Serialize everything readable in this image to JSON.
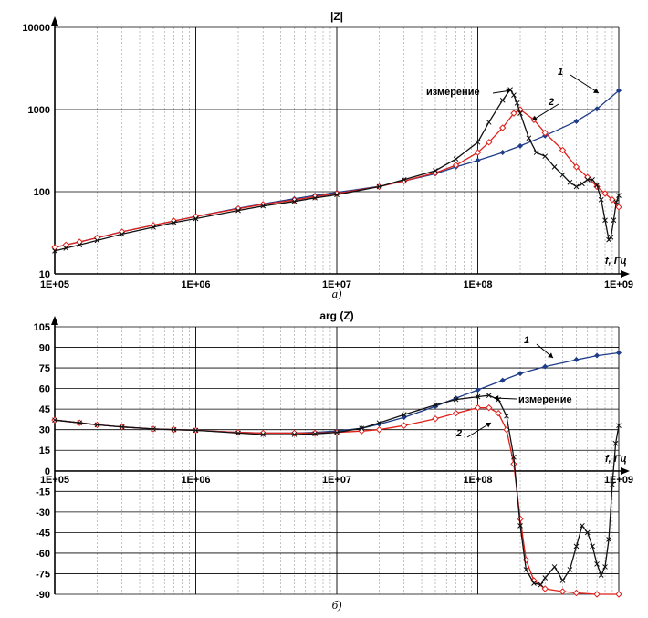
{
  "chart_data": [
    {
      "type": "line",
      "title": "|Z|",
      "subtitle": "а)",
      "scale_x": "log",
      "scale_y": "log",
      "xlim": [
        100000,
        1000000000
      ],
      "ylim": [
        10,
        10000
      ],
      "x_ticks": [
        "1E+05",
        "1E+06",
        "1E+07",
        "1E+08",
        "1E+09"
      ],
      "y_ticks": [
        "10",
        "100",
        "1000",
        "10000"
      ],
      "x_unit_label": "f, Гц",
      "grid": true,
      "annotations": [
        "1",
        "2",
        "измерение"
      ],
      "series": [
        {
          "name": "1",
          "color": "#1f3c88",
          "marker": "diamond",
          "x": [
            100000,
            120000,
            150000,
            200000,
            300000,
            500000,
            700000,
            1000000,
            2000000,
            3000000,
            5000000,
            7000000,
            10000000,
            20000000,
            30000000,
            50000000,
            70000000,
            100000000,
            150000000,
            200000000,
            300000000,
            500000000,
            700000000,
            1000000000
          ],
          "y": [
            21,
            22.5,
            24.5,
            27.5,
            32.5,
            39,
            44,
            50,
            63,
            71,
            82,
            90,
            98,
            116,
            135,
            165,
            200,
            240,
            300,
            360,
            480,
            720,
            1020,
            1700
          ]
        },
        {
          "name": "2",
          "color": "#e0201b",
          "marker": "diamond-open",
          "x": [
            100000,
            120000,
            150000,
            200000,
            300000,
            500000,
            700000,
            1000000,
            2000000,
            3000000,
            5000000,
            7000000,
            10000000,
            20000000,
            30000000,
            50000000,
            70000000,
            100000000,
            120000000,
            150000000,
            180000000,
            200000000,
            250000000,
            300000000,
            400000000,
            500000000,
            600000000,
            700000000,
            800000000,
            900000000,
            1000000000
          ],
          "y": [
            21,
            22.5,
            24.5,
            27.5,
            32.5,
            39,
            44,
            50,
            62,
            70,
            79,
            87,
            95,
            115,
            135,
            170,
            210,
            300,
            400,
            600,
            900,
            1000,
            750,
            520,
            320,
            200,
            150,
            115,
            95,
            80,
            65
          ]
        },
        {
          "name": "измерение",
          "color": "#111111",
          "marker": "x",
          "x": [
            100000,
            120000,
            150000,
            200000,
            300000,
            500000,
            700000,
            1000000,
            2000000,
            3000000,
            5000000,
            7000000,
            10000000,
            20000000,
            30000000,
            50000000,
            70000000,
            100000000,
            120000000,
            150000000,
            170000000,
            180000000,
            190000000,
            200000000,
            230000000,
            260000000,
            300000000,
            350000000,
            400000000,
            450000000,
            500000000,
            550000000,
            600000000,
            650000000,
            700000000,
            750000000,
            800000000,
            850000000,
            880000000,
            920000000,
            960000000,
            1000000000
          ],
          "y": [
            19,
            20.5,
            22.5,
            25.5,
            30.5,
            37,
            42,
            47,
            59,
            67,
            76,
            84,
            92,
            115,
            140,
            180,
            250,
            400,
            700,
            1300,
            1750,
            1500,
            1200,
            900,
            450,
            300,
            270,
            200,
            160,
            130,
            115,
            125,
            140,
            140,
            120,
            80,
            45,
            26,
            28,
            45,
            75,
            90
          ]
        }
      ]
    },
    {
      "type": "line",
      "title": "arg (Z)",
      "subtitle": "б)",
      "scale_x": "log",
      "xlim": [
        100000,
        1000000000
      ],
      "ylim": [
        -90,
        105
      ],
      "x_ticks": [
        "1E+05",
        "1E+06",
        "1E+07",
        "1E+08",
        "1E+09"
      ],
      "y_ticks": [
        "105",
        "90",
        "75",
        "60",
        "45",
        "30",
        "15",
        "0",
        "-15",
        "-30",
        "-45",
        "-60",
        "-75",
        "-90"
      ],
      "x_unit_label": "f, Гц",
      "grid": true,
      "annotations": [
        "1",
        "2",
        "измерение"
      ],
      "series": [
        {
          "name": "1",
          "color": "#1f3c88",
          "marker": "diamond",
          "x": [
            100000,
            150000,
            200000,
            300000,
            500000,
            700000,
            1000000,
            2000000,
            3000000,
            5000000,
            7000000,
            10000000,
            15000000,
            20000000,
            30000000,
            50000000,
            70000000,
            100000000,
            150000000,
            200000000,
            300000000,
            500000000,
            700000000,
            1000000000
          ],
          "y": [
            37,
            35,
            33.5,
            32,
            30.5,
            30,
            29.5,
            28,
            27.5,
            27.5,
            28,
            29,
            31,
            34,
            39,
            47,
            53,
            59,
            66,
            71,
            76,
            81,
            84,
            86
          ]
        },
        {
          "name": "2",
          "color": "#e0201b",
          "marker": "diamond-open",
          "x": [
            100000,
            150000,
            200000,
            300000,
            500000,
            700000,
            1000000,
            2000000,
            3000000,
            5000000,
            7000000,
            10000000,
            15000000,
            20000000,
            30000000,
            50000000,
            70000000,
            100000000,
            120000000,
            140000000,
            160000000,
            180000000,
            200000000,
            220000000,
            250000000,
            300000000,
            400000000,
            500000000,
            700000000,
            1000000000
          ],
          "y": [
            37,
            35,
            33.5,
            32,
            30.5,
            30,
            29.5,
            28,
            27.5,
            27.5,
            27.5,
            28,
            29,
            30,
            33,
            38,
            42,
            46,
            46,
            42,
            30,
            5,
            -35,
            -65,
            -80,
            -86,
            -88,
            -89,
            -90,
            -90
          ]
        },
        {
          "name": "измерение",
          "color": "#111111",
          "marker": "x",
          "x": [
            100000,
            150000,
            200000,
            300000,
            500000,
            700000,
            1000000,
            2000000,
            3000000,
            5000000,
            7000000,
            10000000,
            15000000,
            20000000,
            30000000,
            50000000,
            70000000,
            100000000,
            120000000,
            140000000,
            160000000,
            180000000,
            200000000,
            220000000,
            250000000,
            280000000,
            300000000,
            350000000,
            400000000,
            450000000,
            500000000,
            550000000,
            600000000,
            650000000,
            700000000,
            750000000,
            800000000,
            850000000,
            900000000,
            950000000,
            1000000000
          ],
          "y": [
            37,
            35,
            33.5,
            32,
            30.5,
            30,
            29.5,
            27.5,
            26.5,
            26.5,
            27,
            28,
            31,
            35,
            41,
            48,
            52,
            54,
            55,
            52,
            40,
            10,
            -40,
            -72,
            -82,
            -83,
            -78,
            -70,
            -80,
            -72,
            -55,
            -40,
            -45,
            -55,
            -68,
            -76,
            -70,
            -50,
            -10,
            20,
            33
          ]
        }
      ]
    }
  ]
}
